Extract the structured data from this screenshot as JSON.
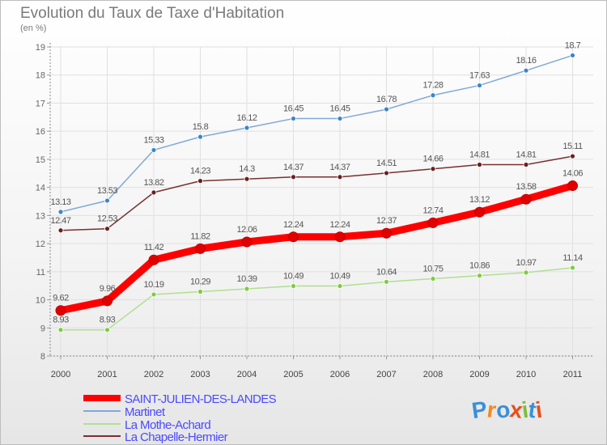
{
  "title": "Evolution du Taux de Taxe d'Habitation",
  "subtitle": "(en %)",
  "logo": {
    "letters": [
      "P",
      "r",
      "o",
      "x",
      "i",
      "t",
      "i"
    ],
    "colors": [
      "#3a8fd8",
      "#f28a1c",
      "#3a8fd8",
      "#e94e1b",
      "#7bbf3a",
      "#3a8fd8",
      "#e94e1b"
    ]
  },
  "chart_data": {
    "type": "line",
    "x": [
      "2000",
      "2001",
      "2002",
      "2003",
      "2004",
      "2005",
      "2006",
      "2007",
      "2008",
      "2009",
      "2010",
      "2011"
    ],
    "ylim": [
      8,
      19
    ],
    "yticks": [
      "8",
      "9",
      "10",
      "11",
      "12",
      "13",
      "14",
      "15",
      "16",
      "17",
      "18",
      "19"
    ],
    "grid": true,
    "series": [
      {
        "name": "SAINT-JULIEN-DES-LANDES",
        "color": "#ff0000",
        "marker_color": "#e00000",
        "width": 9,
        "marker_size": 6,
        "legend_color": "#4a4aff",
        "values": [
          9.62,
          9.96,
          11.42,
          11.82,
          12.06,
          12.24,
          12.24,
          12.37,
          12.74,
          13.12,
          13.58,
          14.06
        ],
        "labels": [
          "9.62",
          "9.96",
          "11.42",
          "11.82",
          "12.06",
          "12.24",
          "12.24",
          "12.37",
          "12.74",
          "13.12",
          "13.58",
          "14.06"
        ]
      },
      {
        "name": "Martinet",
        "color": "#80a8d8",
        "marker_color": "#3a86c8",
        "width": 1.5,
        "marker_size": 3,
        "legend_color": "#4a4aff",
        "values": [
          13.13,
          13.53,
          15.33,
          15.8,
          16.12,
          16.45,
          16.45,
          16.78,
          17.28,
          17.63,
          18.16,
          18.7
        ],
        "labels": [
          "13.13",
          "13.53",
          "15.33",
          "15.8",
          "16.12",
          "16.45",
          "16.45",
          "16.78",
          "17.28",
          "17.63",
          "18.16",
          "18.7"
        ]
      },
      {
        "name": "La Mothe-Achard",
        "color": "#b0e090",
        "marker_color": "#7ccd3c",
        "width": 1.5,
        "marker_size": 3,
        "legend_color": "#4a4aff",
        "values": [
          8.93,
          8.93,
          10.19,
          10.29,
          10.39,
          10.49,
          10.49,
          10.64,
          10.75,
          10.86,
          10.97,
          11.14
        ],
        "labels": [
          "8.93",
          "8.93",
          "10.19",
          "10.29",
          "10.39",
          "10.49",
          "10.49",
          "10.64",
          "10.75",
          "10.86",
          "10.97",
          "11.14"
        ]
      },
      {
        "name": "La Chapelle-Hermier",
        "color": "#7a3030",
        "marker_color": "#6a2020",
        "width": 1.5,
        "marker_size": 3,
        "legend_color": "#4a4aff",
        "values": [
          12.47,
          12.53,
          13.82,
          14.23,
          14.3,
          14.37,
          14.37,
          14.51,
          14.66,
          14.81,
          14.81,
          15.11
        ],
        "labels": [
          "12.47",
          "12.53",
          "13.82",
          "14.23",
          "14.3",
          "14.37",
          "14.37",
          "14.51",
          "14.66",
          "14.81",
          "14.81",
          "15.11"
        ]
      }
    ]
  }
}
